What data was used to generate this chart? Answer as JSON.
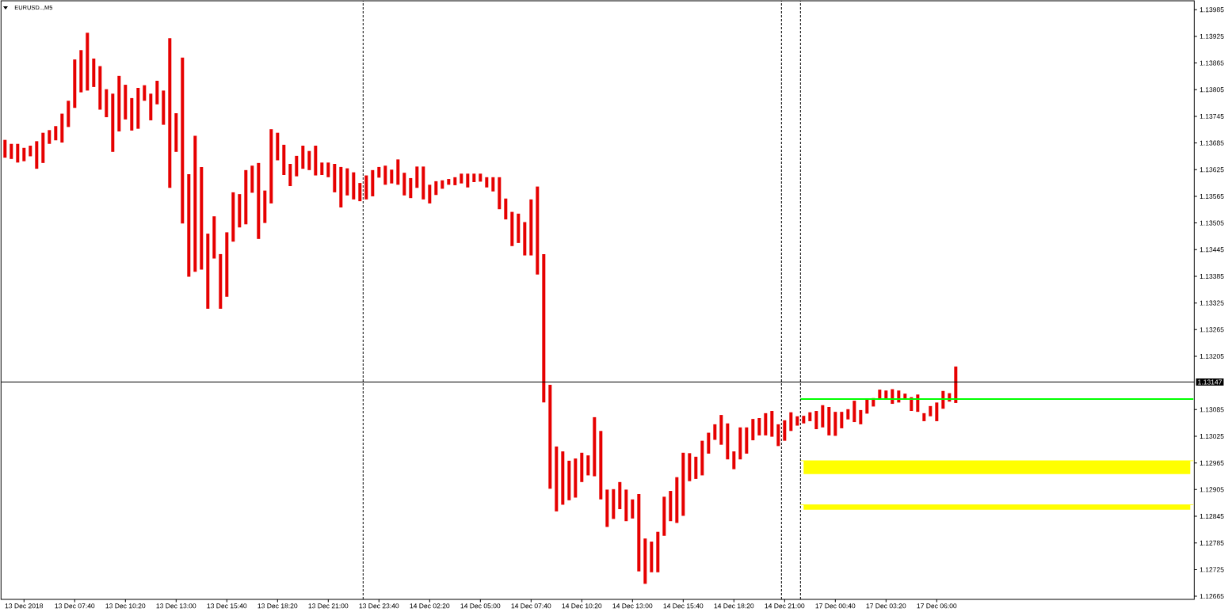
{
  "chart_data": {
    "type": "bar",
    "title": "EURUSD..,M5",
    "categories": [
      null,
      null,
      null,
      "13 Dec 2018",
      null,
      null,
      null,
      null,
      null,
      null,
      null,
      "13 Dec 07:40",
      null,
      null,
      null,
      null,
      null,
      null,
      null,
      "13 Dec 10:20",
      null,
      null,
      null,
      null,
      null,
      null,
      null,
      "13 Dec 13:00",
      null,
      null,
      null,
      null,
      null,
      null,
      null,
      "13 Dec 15:40",
      null,
      null,
      null,
      null,
      null,
      null,
      null,
      "13 Dec 18:20",
      null,
      null,
      null,
      null,
      null,
      null,
      null,
      "13 Dec 21:00",
      null,
      null,
      null,
      null,
      null,
      null,
      null,
      "13 Dec 23:40",
      null,
      null,
      null,
      null,
      null,
      null,
      null,
      "14 Dec 02:20",
      null,
      null,
      null,
      null,
      null,
      null,
      null,
      "14 Dec 05:00",
      null,
      null,
      null,
      null,
      null,
      null,
      null,
      "14 Dec 07:40",
      null,
      null,
      null,
      null,
      null,
      null,
      null,
      "14 Dec 10:20",
      null,
      null,
      null,
      null,
      null,
      null,
      null,
      "14 Dec 13:00",
      null,
      null,
      null,
      null,
      null,
      null,
      null,
      "14 Dec 15:40",
      null,
      null,
      null,
      null,
      null,
      null,
      null,
      "14 Dec 18:20",
      null,
      null,
      null,
      null,
      null,
      null,
      null,
      "14 Dec 21:00",
      null,
      null,
      null,
      null,
      null,
      null,
      null,
      "17 Dec 00:40",
      null,
      null,
      null,
      null,
      null,
      null,
      null,
      "17 Dec 03:20",
      null,
      null,
      null,
      null,
      null,
      null,
      null,
      "17 Dec 06:00",
      null,
      null,
      null,
      null,
      null,
      null,
      null,
      null,
      null,
      null,
      null,
      null,
      null,
      null,
      null,
      null,
      null,
      null,
      null,
      null,
      null,
      null,
      null,
      null,
      null,
      null,
      null,
      null,
      null,
      null,
      null,
      null,
      null,
      null,
      null,
      null,
      null,
      null,
      null,
      null
    ],
    "ylim": [
      1.12658,
      1.14005
    ],
    "yticks": [
      1.12665,
      1.12725,
      1.12785,
      1.12845,
      1.12905,
      1.12965,
      1.13025,
      1.13085,
      1.13205,
      1.13265,
      1.13325,
      1.13385,
      1.13445,
      1.13505,
      1.13565,
      1.13625,
      1.13685,
      1.13745,
      1.13805,
      1.13865,
      1.13925,
      1.13985
    ],
    "series": [
      {
        "color": "#e60000",
        "base": [
          1.13652,
          1.13649,
          1.13641,
          1.13644,
          1.13655,
          1.13627,
          1.1364,
          1.13683,
          1.13691,
          1.13686,
          1.13721,
          1.13764,
          1.13799,
          1.13803,
          1.13811,
          1.1376,
          1.13743,
          1.13665,
          1.13711,
          1.13738,
          1.13713,
          1.13717,
          1.1378,
          1.13736,
          1.13772,
          1.13726,
          1.13584,
          1.13665,
          1.13504,
          1.13384,
          1.13395,
          1.134,
          1.13312,
          1.13425,
          1.13312,
          1.13339,
          1.13463,
          1.13495,
          1.13502,
          1.13573,
          1.13469,
          1.13505,
          1.13549,
          1.13646,
          1.13613,
          1.13588,
          1.1361,
          1.13627,
          1.13624,
          1.13612,
          1.13613,
          1.13608,
          1.13574,
          1.1354,
          1.13567,
          1.13558,
          1.13554,
          1.13558,
          1.13565,
          1.13607,
          1.13591,
          1.13594,
          1.13591,
          1.13567,
          1.13561,
          1.13584,
          1.13558,
          1.13549,
          1.13568,
          1.13582,
          1.13591,
          1.1359,
          1.13594,
          1.13585,
          1.13597,
          1.13598,
          1.13585,
          1.13576,
          1.13536,
          1.13513,
          1.13453,
          1.1346,
          1.13432,
          1.13432,
          1.13389,
          1.13101,
          1.12907,
          1.12856,
          1.12871,
          1.12881,
          1.12887,
          1.12922,
          1.12937,
          1.12935,
          1.12883,
          1.12821,
          1.12839,
          1.12861,
          1.12834,
          1.1284,
          1.12721,
          1.12693,
          1.12719,
          1.12719,
          1.12801,
          1.12834,
          1.1283,
          1.12846,
          1.12924,
          1.12929,
          1.12937,
          1.12986,
          1.13017,
          1.13006,
          1.12973,
          1.12951,
          1.12973,
          1.12986,
          1.13016,
          1.13027,
          1.13027,
          1.13024,
          1.13003,
          1.13015,
          1.13037,
          1.13049,
          1.13054,
          1.13059,
          1.13041,
          1.13045,
          1.13027,
          1.13026,
          1.13043,
          1.13063,
          1.13057,
          1.13052,
          1.13076,
          1.13092,
          1.13108,
          1.1311,
          1.13098,
          1.13101,
          1.1311,
          1.13082,
          1.1308,
          1.13059,
          1.1307,
          1.13059,
          1.13087,
          1.13103,
          1.131,
          null,
          null,
          null,
          null,
          null,
          null,
          null,
          null,
          null,
          null,
          null,
          null,
          null,
          null,
          null,
          null,
          null,
          null,
          null,
          null,
          null,
          null,
          null,
          null,
          null,
          null,
          null,
          null,
          null,
          null,
          null,
          null,
          null,
          null,
          null,
          null,
          null
        ],
        "values": [
          0.0004,
          0.00034,
          0.00042,
          0.0003,
          0.00024,
          0.00062,
          0.00068,
          0.00031,
          0.00032,
          0.00065,
          0.00059,
          0.00109,
          0.00095,
          0.0013,
          0.00064,
          0.00098,
          0.00063,
          0.00131,
          0.00125,
          0.00078,
          0.00073,
          0.00092,
          0.00035,
          0.0006,
          0.00053,
          0.00077,
          0.00337,
          0.00087,
          0.00373,
          0.00231,
          0.00306,
          0.00231,
          0.00169,
          0.00095,
          0.00123,
          0.00145,
          0.00111,
          0.00075,
          0.00122,
          0.00061,
          0.00171,
          0.00073,
          0.00167,
          0.00062,
          0.00068,
          0.0005,
          0.00046,
          0.00052,
          0.00043,
          0.00067,
          0.00028,
          0.00033,
          0.00064,
          0.00091,
          0.00061,
          0.00061,
          0.00041,
          0.00054,
          0.00059,
          0.00024,
          0.00043,
          0.00031,
          0.00057,
          0.00051,
          0.00045,
          0.00048,
          0.00074,
          0.00042,
          0.00031,
          0.00019,
          0.00013,
          0.00018,
          0.00022,
          0.00031,
          0.00019,
          0.00018,
          0.00023,
          0.00032,
          0.00072,
          0.00047,
          0.00077,
          0.00066,
          0.00075,
          0.00126,
          0.00198,
          0.00334,
          0.00234,
          0.00146,
          0.0012,
          0.00089,
          0.00088,
          0.00066,
          0.00045,
          0.00133,
          0.00154,
          0.00084,
          0.00067,
          0.00061,
          0.00071,
          0.00043,
          0.00174,
          0.00102,
          0.00069,
          0.00091,
          0.00088,
          0.00068,
          0.00103,
          0.00142,
          0.00063,
          0.0005,
          0.00078,
          0.00047,
          0.00035,
          0.00067,
          0.00081,
          0.0004,
          0.00072,
          0.00059,
          0.00048,
          0.00039,
          0.0005,
          0.00058,
          0.00049,
          0.00046,
          0.00042,
          0.00021,
          0.00017,
          0.0002,
          0.00041,
          0.0005,
          0.00064,
          0.00054,
          0.00037,
          0.00023,
          0.00048,
          0.00032,
          0.00033,
          0.00019,
          0.00022,
          0.00018,
          0.00033,
          0.00027,
          0.00011,
          0.00031,
          0.00039,
          0.00018,
          0.00023,
          0.00042,
          0.0004,
          0.00019,
          0.00082,
          null,
          null,
          null,
          null,
          null,
          null,
          null,
          null,
          null,
          null,
          null,
          null,
          null,
          null,
          null,
          null,
          null,
          null,
          null,
          null,
          null,
          null,
          null,
          null,
          null,
          null,
          null,
          null,
          null,
          null,
          null,
          null,
          null,
          null,
          null,
          null,
          null
        ]
      },
      {
        "type": "line",
        "color": "#00ff00",
        "values": [
          null,
          null,
          null,
          null,
          null,
          null,
          null,
          null,
          null,
          null,
          null,
          null,
          null,
          null,
          null,
          null,
          null,
          null,
          null,
          null,
          null,
          null,
          null,
          null,
          null,
          null,
          null,
          null,
          null,
          null,
          null,
          null,
          null,
          null,
          null,
          null,
          null,
          null,
          null,
          null,
          null,
          null,
          null,
          null,
          null,
          null,
          null,
          null,
          null,
          null,
          null,
          null,
          null,
          null,
          null,
          null,
          null,
          null,
          null,
          null,
          null,
          null,
          null,
          null,
          null,
          null,
          null,
          null,
          null,
          null,
          null,
          null,
          null,
          null,
          null,
          null,
          null,
          null,
          null,
          null,
          null,
          null,
          null,
          null,
          null,
          null,
          null,
          null,
          null,
          null,
          null,
          null,
          null,
          null,
          null,
          null,
          null,
          null,
          null,
          null,
          null,
          null,
          null,
          null,
          null,
          null,
          null,
          null,
          null,
          null,
          null,
          null,
          null,
          null,
          null,
          null,
          null,
          null,
          null,
          null,
          null,
          null,
          null,
          null,
          null,
          null,
          1.13109,
          1.13109,
          1.13109,
          1.13109,
          1.13109,
          1.13109,
          1.13109,
          1.13109,
          1.13109,
          1.13109,
          1.13109,
          1.13109,
          1.13109,
          1.13109,
          1.13109,
          1.13109,
          1.13109,
          1.13109,
          1.13109,
          1.13109,
          1.13109,
          1.13109,
          1.13109,
          1.13109,
          1.13109,
          1.13109,
          1.13109,
          1.13109,
          1.13109,
          1.13109,
          1.13109,
          1.13109,
          1.13109,
          1.13109,
          1.13109,
          1.13109,
          1.13109,
          1.13109,
          1.13109,
          1.13109,
          1.13109,
          1.13109,
          1.13109,
          1.13109,
          1.13109,
          1.13109,
          1.13109,
          1.13109,
          1.13109,
          1.13109,
          1.13109,
          1.13109,
          1.13109,
          1.13109,
          1.13109,
          1.13109,
          1.13109,
          1.13109,
          1.13109,
          1.13109,
          1.13109,
          1.13109
        ]
      },
      {
        "type": "line",
        "color": "#ffff00",
        "values": [
          null,
          null,
          null,
          null,
          null,
          null,
          null,
          null,
          null,
          null,
          null,
          null,
          null,
          null,
          null,
          null,
          null,
          null,
          null,
          null,
          null,
          null,
          null,
          null,
          null,
          null,
          null,
          null,
          null,
          null,
          null,
          null,
          null,
          null,
          null,
          null,
          null,
          null,
          null,
          null,
          null,
          null,
          null,
          null,
          null,
          null,
          null,
          null,
          null,
          null,
          null,
          null,
          null,
          null,
          null,
          null,
          null,
          null,
          null,
          null,
          null,
          null,
          null,
          null,
          null,
          null,
          null,
          null,
          null,
          null,
          null,
          null,
          null,
          null,
          null,
          null,
          null,
          null,
          null,
          null,
          null,
          null,
          null,
          null,
          null,
          null,
          null,
          null,
          null,
          null,
          null,
          null,
          null,
          null,
          null,
          null,
          null,
          null,
          null,
          null,
          null,
          null,
          null,
          null,
          null,
          null,
          null,
          null,
          null,
          null,
          null,
          null,
          null,
          null,
          null,
          null,
          null,
          null,
          null,
          null,
          null,
          null,
          null,
          null,
          null,
          null,
          1.1297,
          1.1297,
          1.1297,
          1.1297,
          1.1297,
          1.1297,
          1.1297,
          1.1297,
          1.1297,
          1.1297,
          1.1297,
          1.1297,
          1.1297,
          1.1297,
          1.1297,
          1.1297,
          1.1297,
          1.1297,
          1.1297,
          1.1297,
          1.1297,
          1.1297,
          1.1297,
          1.1297,
          1.1297,
          1.1297,
          1.1297,
          1.1297,
          1.1297,
          1.1297,
          1.1297,
          1.1297,
          1.1297,
          1.1297,
          1.1297,
          1.1297,
          1.1297,
          1.1297,
          1.1297,
          1.1297,
          1.1297,
          1.1297,
          1.1297,
          1.1297,
          1.1297,
          1.1297,
          1.1297,
          1.1297,
          1.1297,
          1.1297,
          1.1297,
          1.1297,
          1.1297,
          1.1297,
          1.1297,
          1.1297,
          1.1297,
          1.1297,
          1.1297,
          1.1297,
          1.1297,
          1.1297
        ],
        "upper": [
          null,
          null,
          null,
          null,
          null,
          null,
          null,
          null,
          null,
          null,
          null,
          null,
          null,
          null,
          null,
          null,
          null,
          null,
          null,
          null,
          null,
          null,
          null,
          null,
          null,
          null,
          null,
          null,
          null,
          null,
          null,
          null,
          null,
          null,
          null,
          null,
          null,
          null,
          null,
          null,
          null,
          null,
          null,
          null,
          null,
          null,
          null,
          null,
          null,
          null,
          null,
          null,
          null,
          null,
          null,
          null,
          null,
          null,
          null,
          null,
          null,
          null,
          null,
          null,
          null,
          null,
          null,
          null,
          null,
          null,
          null,
          null,
          null,
          null,
          null,
          null,
          null,
          null,
          null,
          null,
          null,
          null,
          null,
          null,
          null,
          null,
          null,
          null,
          null,
          null,
          null,
          null,
          null,
          null,
          null,
          null,
          null,
          null,
          null,
          null,
          null,
          null,
          null,
          null,
          null,
          null,
          null,
          null,
          null,
          null,
          null,
          null,
          null,
          null,
          null,
          null,
          null,
          null,
          null,
          null,
          null,
          null,
          null,
          null,
          null,
          null,
          1.1297,
          1.1297,
          1.1297,
          1.1297,
          1.1297,
          1.1297,
          1.1297,
          1.1297,
          1.1297,
          1.1297,
          1.1297,
          1.1297,
          1.1297,
          1.1297,
          1.1297,
          1.1297,
          1.1297,
          1.1297,
          1.1297,
          1.1297,
          1.1297,
          1.1297,
          1.1297,
          1.1297,
          1.1297,
          1.1297,
          1.1297,
          1.1297,
          1.1297,
          1.1297,
          1.1297,
          1.1297,
          1.1297,
          1.1297,
          1.1297,
          1.1297,
          1.1297,
          1.1297,
          1.1297,
          1.1297,
          1.1297,
          1.1297,
          1.1297,
          1.1297,
          1.1297,
          1.1297,
          1.1297,
          1.1297,
          1.1297,
          1.1297,
          1.1297,
          1.1297,
          1.1297,
          1.1297,
          1.1297,
          1.1297,
          1.1297,
          1.1297,
          1.1297,
          1.1297,
          1.1297,
          1.1297
        ],
        "lower": [
          null,
          null,
          null,
          null,
          null,
          null,
          null,
          null,
          null,
          null,
          null,
          null,
          null,
          null,
          null,
          null,
          null,
          null,
          null,
          null,
          null,
          null,
          null,
          null,
          null,
          null,
          null,
          null,
          null,
          null,
          null,
          null,
          null,
          null,
          null,
          null,
          null,
          null,
          null,
          null,
          null,
          null,
          null,
          null,
          null,
          null,
          null,
          null,
          null,
          null,
          null,
          null,
          null,
          null,
          null,
          null,
          null,
          null,
          null,
          null,
          null,
          null,
          null,
          null,
          null,
          null,
          null,
          null,
          null,
          null,
          null,
          null,
          null,
          null,
          null,
          null,
          null,
          null,
          null,
          null,
          null,
          null,
          null,
          null,
          null,
          null,
          null,
          null,
          null,
          null,
          null,
          null,
          null,
          null,
          null,
          null,
          null,
          null,
          null,
          null,
          null,
          null,
          null,
          null,
          null,
          null,
          null,
          null,
          null,
          null,
          null,
          null,
          null,
          null,
          null,
          null,
          null,
          null,
          null,
          null,
          null,
          null,
          null,
          null,
          null,
          null,
          1.1294,
          1.1294,
          1.1294,
          1.1294,
          1.1294,
          1.1294,
          1.1294,
          1.1294,
          1.1294,
          1.1294,
          1.1294,
          1.1294,
          1.1294,
          1.1294,
          1.1294,
          1.1294,
          1.1294,
          1.1294,
          1.1294,
          1.1294,
          1.1294,
          1.1294,
          1.1294,
          1.1294,
          1.1294,
          1.1294,
          1.1294,
          1.1294,
          1.1294,
          1.1294,
          1.1294,
          1.1294,
          1.1294,
          1.1294,
          1.1294,
          1.1294,
          1.1294,
          1.1294,
          1.1294,
          1.1294,
          1.1294,
          1.1294,
          1.1294,
          1.1294,
          1.1294,
          1.1294,
          1.1294,
          1.1294,
          1.1294,
          1.1294,
          1.1294,
          1.1294,
          1.1294,
          1.1294,
          1.1294,
          1.1294,
          1.1294,
          1.1294,
          1.1294,
          1.1294,
          1.1294,
          1.1294
        ]
      },
      {
        "type": "line",
        "color": "#fffe00",
        "values": [
          null,
          null,
          null,
          null,
          null,
          null,
          null,
          null,
          null,
          null,
          null,
          null,
          null,
          null,
          null,
          null,
          null,
          null,
          null,
          null,
          null,
          null,
          null,
          null,
          null,
          null,
          null,
          null,
          null,
          null,
          null,
          null,
          null,
          null,
          null,
          null,
          null,
          null,
          null,
          null,
          null,
          null,
          null,
          null,
          null,
          null,
          null,
          null,
          null,
          null,
          null,
          null,
          null,
          null,
          null,
          null,
          null,
          null,
          null,
          null,
          null,
          null,
          null,
          null,
          null,
          null,
          null,
          null,
          null,
          null,
          null,
          null,
          null,
          null,
          null,
          null,
          null,
          null,
          null,
          null,
          null,
          null,
          null,
          null,
          null,
          null,
          null,
          null,
          null,
          null,
          null,
          null,
          null,
          null,
          null,
          null,
          null,
          null,
          null,
          null,
          null,
          null,
          null,
          null,
          null,
          null,
          null,
          null,
          null,
          null,
          null,
          null,
          null,
          null,
          null,
          null,
          null,
          null,
          null,
          null,
          null,
          null,
          null,
          null,
          null,
          null,
          1.12871,
          1.12871,
          1.12871,
          1.12871,
          1.12871,
          1.12871,
          1.12871,
          1.12871,
          1.12871,
          1.12871,
          1.12871,
          1.12871,
          1.12871,
          1.12871,
          1.12871,
          1.12871,
          1.12871,
          1.12871,
          1.12871,
          1.12871,
          1.12871,
          1.12871,
          1.12871,
          1.12871,
          1.12871,
          1.12871,
          1.12871,
          1.12871,
          1.12871,
          1.12871,
          1.12871,
          1.12871,
          1.12871,
          1.12871,
          1.12871,
          1.12871,
          1.12871,
          1.12871,
          1.12871,
          1.12871,
          1.12871,
          1.12871,
          1.12871,
          1.12871,
          1.12871,
          1.12871,
          1.12871,
          1.12871,
          1.12871,
          1.12871,
          1.12871,
          1.12871,
          1.12871,
          1.12871,
          1.12871,
          1.12871,
          1.12871,
          1.12871,
          1.12871,
          1.12871,
          1.12871,
          1.12871
        ],
        "upper": [
          null,
          null,
          null,
          null,
          null,
          null,
          null,
          null,
          null,
          null,
          null,
          null,
          null,
          null,
          null,
          null,
          null,
          null,
          null,
          null,
          null,
          null,
          null,
          null,
          null,
          null,
          null,
          null,
          null,
          null,
          null,
          null,
          null,
          null,
          null,
          null,
          null,
          null,
          null,
          null,
          null,
          null,
          null,
          null,
          null,
          null,
          null,
          null,
          null,
          null,
          null,
          null,
          null,
          null,
          null,
          null,
          null,
          null,
          null,
          null,
          null,
          null,
          null,
          null,
          null,
          null,
          null,
          null,
          null,
          null,
          null,
          null,
          null,
          null,
          null,
          null,
          null,
          null,
          null,
          null,
          null,
          null,
          null,
          null,
          null,
          null,
          null,
          null,
          null,
          null,
          null,
          null,
          null,
          null,
          null,
          null,
          null,
          null,
          null,
          null,
          null,
          null,
          null,
          null,
          null,
          null,
          null,
          null,
          null,
          null,
          null,
          null,
          null,
          null,
          null,
          null,
          null,
          null,
          null,
          null,
          null,
          null,
          null,
          null,
          null,
          null,
          1.12871,
          1.12871,
          1.12871,
          1.12871,
          1.12871,
          1.12871,
          1.12871,
          1.12871,
          1.12871,
          1.12871,
          1.12871,
          1.12871,
          1.12871,
          1.12871,
          1.12871,
          1.12871,
          1.12871,
          1.12871,
          1.12871,
          1.12871,
          1.12871,
          1.12871,
          1.12871,
          1.12871,
          1.12871,
          1.12871,
          1.12871,
          1.12871,
          1.12871,
          1.12871,
          1.12871,
          1.12871,
          1.12871,
          1.12871,
          1.12871,
          1.12871,
          1.12871,
          1.12871,
          1.12871,
          1.12871,
          1.12871,
          1.12871,
          1.12871,
          1.12871,
          1.12871,
          1.12871,
          1.12871,
          1.12871,
          1.12871,
          1.12871,
          1.12871,
          1.12871,
          1.12871,
          1.12871,
          1.12871,
          1.12871,
          1.12871,
          1.12871,
          1.12871,
          1.12871,
          1.12871,
          1.12871
        ],
        "lower": [
          null,
          null,
          null,
          null,
          null,
          null,
          null,
          null,
          null,
          null,
          null,
          null,
          null,
          null,
          null,
          null,
          null,
          null,
          null,
          null,
          null,
          null,
          null,
          null,
          null,
          null,
          null,
          null,
          null,
          null,
          null,
          null,
          null,
          null,
          null,
          null,
          null,
          null,
          null,
          null,
          null,
          null,
          null,
          null,
          null,
          null,
          null,
          null,
          null,
          null,
          null,
          null,
          null,
          null,
          null,
          null,
          null,
          null,
          null,
          null,
          null,
          null,
          null,
          null,
          null,
          null,
          null,
          null,
          null,
          null,
          null,
          null,
          null,
          null,
          null,
          null,
          null,
          null,
          null,
          null,
          null,
          null,
          null,
          null,
          null,
          null,
          null,
          null,
          null,
          null,
          null,
          null,
          null,
          null,
          null,
          null,
          null,
          null,
          null,
          null,
          null,
          null,
          null,
          null,
          null,
          null,
          null,
          null,
          null,
          null,
          null,
          null,
          null,
          null,
          null,
          null,
          null,
          null,
          null,
          null,
          null,
          null,
          null,
          null,
          null,
          null,
          1.1286,
          1.1286,
          1.1286,
          1.1286,
          1.1286,
          1.1286,
          1.1286,
          1.1286,
          1.1286,
          1.1286,
          1.1286,
          1.1286,
          1.1286,
          1.1286,
          1.1286,
          1.1286,
          1.1286,
          1.1286,
          1.1286,
          1.1286,
          1.1286,
          1.1286,
          1.1286,
          1.1286,
          1.1286,
          1.1286,
          1.1286,
          1.1286,
          1.1286,
          1.1286,
          1.1286,
          1.1286,
          1.1286,
          1.1286,
          1.1286,
          1.1286,
          1.1286,
          1.1286,
          1.1286,
          1.1286,
          1.1286,
          1.1286,
          1.1286,
          1.1286,
          1.1286,
          1.1286,
          1.1286,
          1.1286,
          1.1286,
          1.1286,
          1.1286,
          1.1286,
          1.1286,
          1.1286,
          1.1286,
          1.1286,
          1.1286,
          1.1286,
          1.1286,
          1.1286,
          1.1286,
          1.1286
        ]
      }
    ],
    "ref_lines": [
      {
        "axis": "y",
        "value": 1.13147,
        "label": "1.13147",
        "color": "#000000"
      }
    ]
  }
}
